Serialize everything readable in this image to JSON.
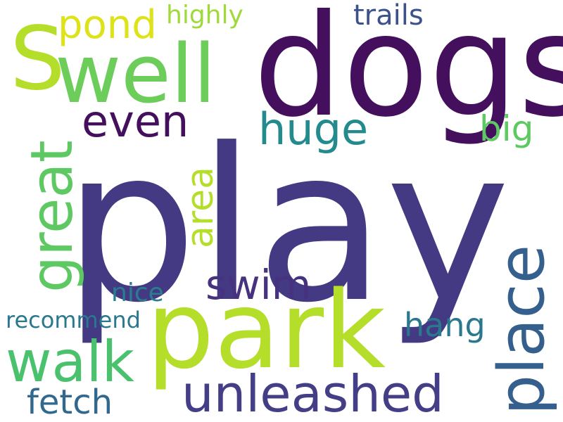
{
  "word_cloud": {
    "background": "#ffffff",
    "words": [
      {
        "text": "play",
        "color": "#443983"
      },
      {
        "text": "dogs",
        "color": "#440f5c"
      },
      {
        "text": "park",
        "color": "#b5de2b"
      },
      {
        "text": "well",
        "color": "#6ccd5a"
      },
      {
        "text": "S",
        "color": "#b5de2b"
      },
      {
        "text": "unleashed",
        "color": "#433e85"
      },
      {
        "text": "place",
        "color": "#355f8d"
      },
      {
        "text": "great",
        "color": "#5ec962"
      },
      {
        "text": "walk",
        "color": "#4ac16d"
      },
      {
        "text": "huge",
        "color": "#238a8d"
      },
      {
        "text": "even",
        "color": "#440f5c"
      },
      {
        "text": "pond",
        "color": "#dde318"
      },
      {
        "text": "swim",
        "color": "#46327e"
      },
      {
        "text": "area",
        "color": "#b5de2b"
      },
      {
        "text": "big",
        "color": "#5ec962"
      },
      {
        "text": "hang",
        "color": "#2a788e"
      },
      {
        "text": "fetch",
        "color": "#31688e"
      },
      {
        "text": "trails",
        "color": "#3b528b"
      },
      {
        "text": "highly",
        "color": "#9fda3a"
      },
      {
        "text": "nice",
        "color": "#287d8e"
      },
      {
        "text": "recommend",
        "color": "#2a788e"
      }
    ]
  }
}
